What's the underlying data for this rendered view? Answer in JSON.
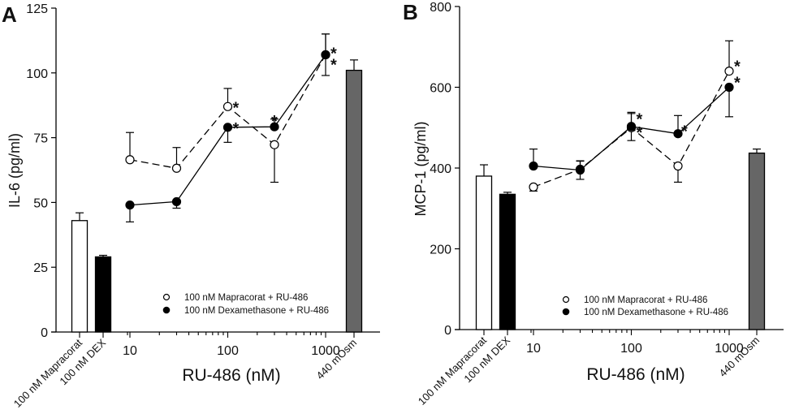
{
  "chart_data": [
    {
      "type": "line",
      "panel_label": "A",
      "ylabel": "IL-6  (pg/ml)",
      "xlabel": "RU-486 (nM)",
      "ylim": [
        0,
        125
      ],
      "yticks": [
        0,
        25,
        50,
        75,
        100,
        125
      ],
      "xscale": "log",
      "xticks": [
        10,
        100,
        1000
      ],
      "xtick_labels": [
        "10",
        "100",
        "1000"
      ],
      "grid": false,
      "legend_position": "bottom-right",
      "bars": [
        {
          "name": "100 nM Mapracorat",
          "value": 43,
          "error": 3,
          "color": "#ffffff"
        },
        {
          "name": "100 nM DEX",
          "value": 29,
          "error": 0.6,
          "color": "#000000"
        },
        {
          "name": "440 mOsm",
          "value": 101,
          "error": 4,
          "color": "#666666"
        }
      ],
      "series": [
        {
          "name": "100 nM Mapracorat + RU-486",
          "marker": "open-circle",
          "line": "dashed",
          "x": [
            10,
            30,
            100,
            300,
            1000
          ],
          "y": [
            66.5,
            63.2,
            87,
            72.3,
            107
          ],
          "error": [
            10.5,
            8,
            7,
            14.5,
            8
          ],
          "error_dir": [
            "up",
            "up",
            "up",
            "down",
            "up"
          ],
          "significant": [
            false,
            false,
            true,
            false,
            true
          ]
        },
        {
          "name": "100 nM Dexamethasone + RU-486",
          "marker": "filled-circle",
          "line": "solid",
          "x": [
            10,
            30,
            100,
            300,
            1000
          ],
          "y": [
            49,
            50.3,
            79,
            79.2,
            107
          ],
          "error": [
            6.5,
            2.5,
            5.8,
            3,
            8
          ],
          "error_dir": [
            "down",
            "down",
            "down",
            "up",
            "both"
          ],
          "significant": [
            false,
            false,
            true,
            true,
            true
          ]
        }
      ]
    },
    {
      "type": "line",
      "panel_label": "B",
      "ylabel": "MCP-1  (pg/ml)",
      "xlabel": "RU-486 (nM)",
      "ylim": [
        0,
        800
      ],
      "yticks": [
        0,
        200,
        400,
        600,
        800
      ],
      "xscale": "log",
      "xticks": [
        10,
        100,
        1000
      ],
      "xtick_labels": [
        "10",
        "100",
        "1000"
      ],
      "grid": false,
      "legend_position": "bottom-right",
      "bars": [
        {
          "name": "100 nM Mapracorat",
          "value": 380,
          "error": 28,
          "color": "#ffffff"
        },
        {
          "name": "100 nM DEX",
          "value": 335,
          "error": 5,
          "color": "#000000"
        },
        {
          "name": "440 mOsm",
          "value": 437,
          "error": 10,
          "color": "#666666"
        }
      ],
      "series": [
        {
          "name": "100 nM Mapracorat + RU-486",
          "marker": "open-circle",
          "line": "dashed",
          "x": [
            10,
            30,
            100,
            300,
            1000
          ],
          "y": [
            353,
            397,
            500,
            405,
            640
          ],
          "error": [
            10,
            20,
            35,
            40,
            75
          ],
          "error_dir": [
            "down",
            "up",
            "up",
            "down",
            "up"
          ],
          "significant": [
            false,
            false,
            true,
            false,
            true
          ]
        },
        {
          "name": "100 nM Dexamethasone + RU-486",
          "marker": "filled-circle",
          "line": "solid",
          "x": [
            10,
            30,
            100,
            300,
            1000
          ],
          "y": [
            405,
            395,
            503,
            485,
            600
          ],
          "error": [
            42,
            23,
            35,
            45,
            73
          ],
          "error_dir": [
            "up",
            "both",
            "both",
            "up",
            "down"
          ],
          "significant": [
            false,
            false,
            true,
            true,
            true
          ]
        }
      ]
    }
  ],
  "legend": {
    "item_open": "100 nM Mapracorat + RU-486",
    "item_filled": "100 nM Dexamethasone + RU-486"
  },
  "category_labels": {
    "mapracorat": "100 nM Mapracorat",
    "dex": "100 nM DEX",
    "osm": "440 mOsm"
  },
  "significance_marker": "*"
}
